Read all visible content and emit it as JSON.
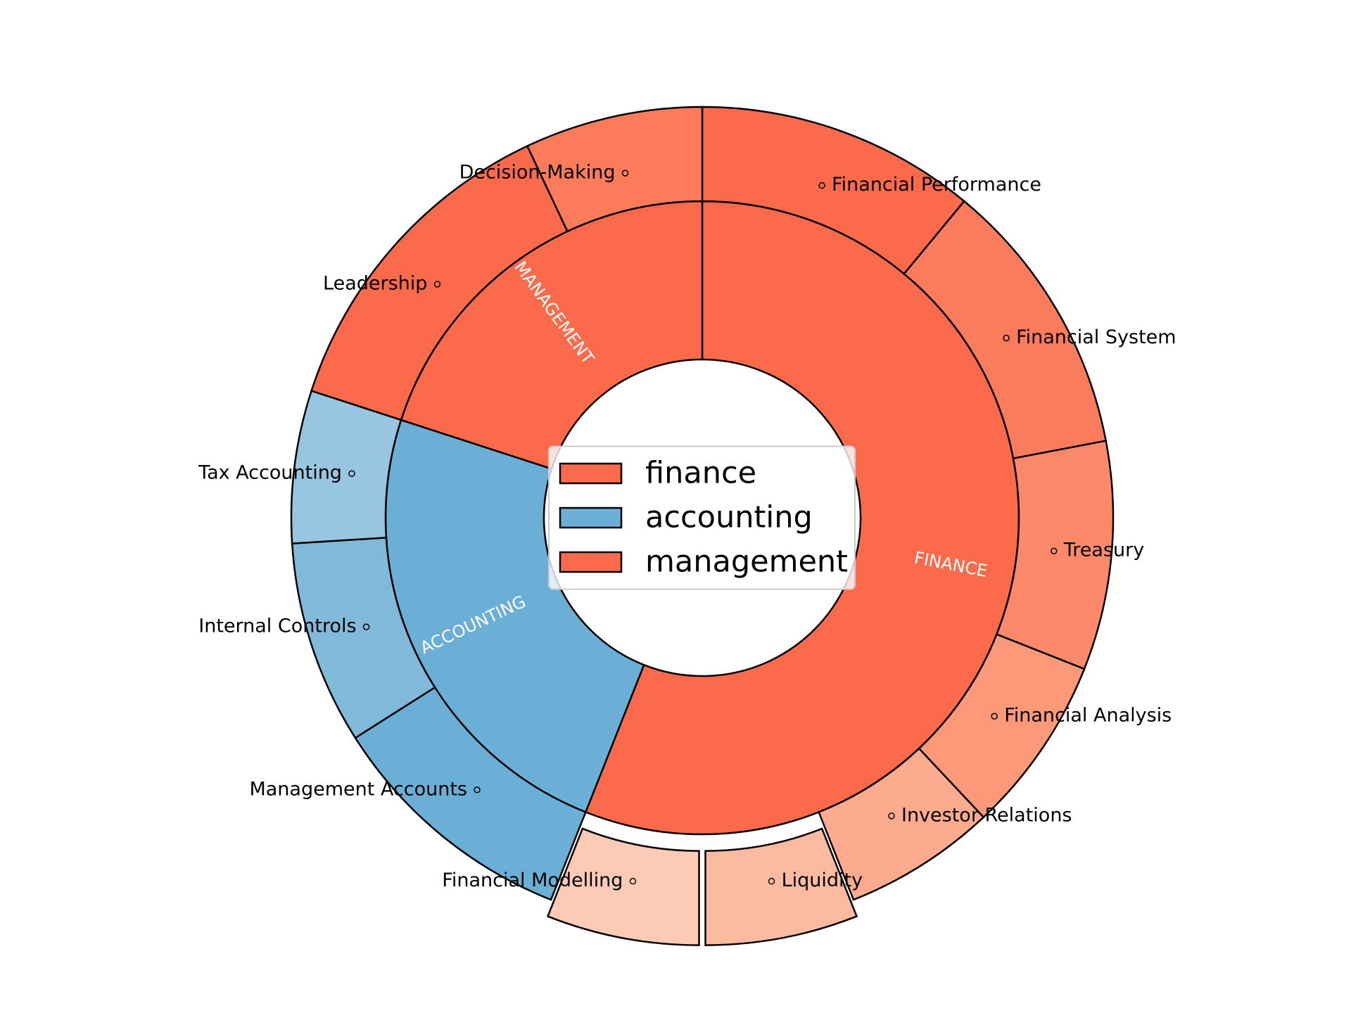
{
  "chart_data": {
    "type": "sunburst",
    "start_angle": 90,
    "direction": "clockwise",
    "legend": "center",
    "categories": [
      {
        "name": "finance",
        "label": "FINANCE",
        "value": 56,
        "color": "#fb6a4a",
        "children": [
          {
            "name": "Financial Performance",
            "value": 11,
            "color": "#fb6a4a"
          },
          {
            "name": "Financial System",
            "value": 11,
            "color": "#fb7c5c"
          },
          {
            "name": "Treasury",
            "value": 9,
            "color": "#fc8a6a"
          },
          {
            "name": "Financial Analysis",
            "value": 7,
            "color": "#fc9979"
          },
          {
            "name": "Investor Relations",
            "value": 6,
            "color": "#fcab8f"
          },
          {
            "name": "Liquidity",
            "value": 6,
            "color": "#fcbba1",
            "explode": true
          },
          {
            "name": "Financial Modelling",
            "value": 6,
            "color": "#fdcab5",
            "explode": true
          }
        ]
      },
      {
        "name": "accounting",
        "label": "ACCOUNTING",
        "value": 24,
        "color": "#6baed6",
        "children": [
          {
            "name": "Management Accounts",
            "value": 10,
            "color": "#6baed6"
          },
          {
            "name": "Internal Controls",
            "value": 8,
            "color": "#81b9da"
          },
          {
            "name": "Tax Accounting",
            "value": 6,
            "color": "#98c5e0"
          }
        ]
      },
      {
        "name": "management",
        "label": "MANAGEMENT",
        "value": 20,
        "color": "#fb6a4a",
        "children": [
          {
            "name": "Leadership",
            "value": 13,
            "color": "#fb6a4a"
          },
          {
            "name": "Decision-Making",
            "value": 7,
            "color": "#fc7b5b"
          }
        ]
      }
    ]
  }
}
